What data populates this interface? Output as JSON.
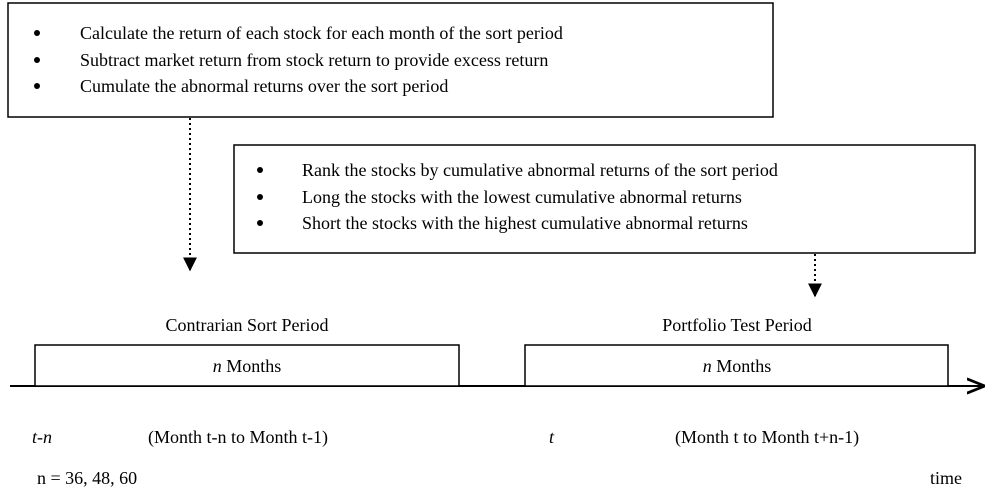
{
  "top_box": {
    "bullets": [
      "Calculate the return of each stock for each month of the sort period",
      "Subtract market return from stock return to provide excess return",
      "Cumulate the abnormal returns over the sort period"
    ]
  },
  "middle_box": {
    "bullets": [
      "Rank the stocks by cumulative abnormal returns of the sort period",
      "Long the stocks with the lowest cumulative abnormal returns",
      "Short the stocks with the highest cumulative abnormal returns"
    ]
  },
  "sort_period": {
    "title": "Contrarian Sort Period",
    "duration": {
      "n": "n",
      "unit": "Months"
    },
    "start": "t-n",
    "range": "(Month t-n to Month t-1)"
  },
  "test_period": {
    "title": "Portfolio Test Period",
    "duration": {
      "n": "n",
      "unit": "Months"
    },
    "start": "t",
    "range": "(Month t to Month t+n-1)"
  },
  "n_values": "n = 36, 48, 60",
  "axis_label": "time"
}
